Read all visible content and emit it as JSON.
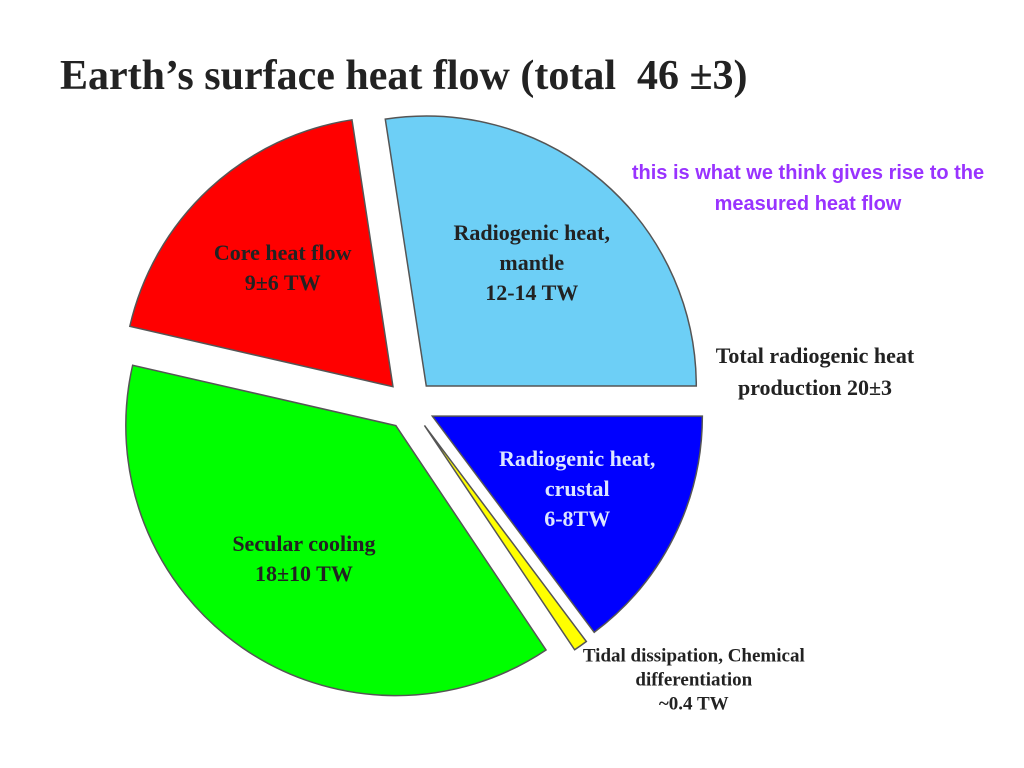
{
  "chart_data": {
    "type": "pie",
    "title": "Earth’s surface heat flow (total  46 ±3)",
    "categories": [
      "Radiogenic heat, mantle",
      "Core heat flow",
      "Secular cooling",
      "Tidal dissipation, Chemical differentiation",
      "Radiogenic heat, crustal"
    ],
    "values": [
      13,
      9,
      18,
      0.4,
      7
    ],
    "value_labels": [
      "12-14 TW",
      "9±6 TW",
      "18±10 TW",
      "~0.4 TW",
      "6-8TW"
    ],
    "colors": [
      "#6dcff6",
      "#ff0000",
      "#00ff00",
      "#ffff00",
      "#0000ff"
    ],
    "annotations": [
      "Total radiogenic heat production 20±3",
      "this is what we think gives rise to the measured heat flow"
    ]
  }
}
